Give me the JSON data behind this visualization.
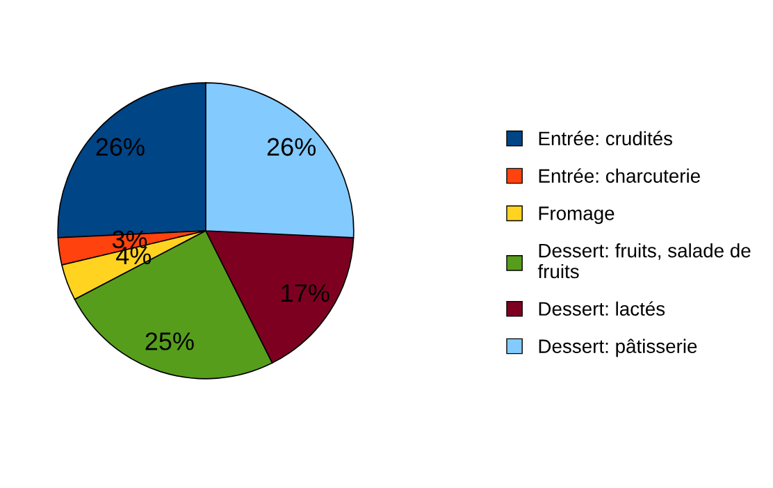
{
  "chart_data": {
    "type": "pie",
    "categories": [
      "Entrée: crudités",
      "Entrée: charcuterie",
      "Fromage",
      "Dessert: fruits, salade de fruits",
      "Dessert: lactés",
      "Dessert: pâtisserie"
    ],
    "values": [
      26,
      3,
      4,
      25,
      17,
      26
    ],
    "colors": [
      "#004586",
      "#ff420e",
      "#ffd320",
      "#579d1c",
      "#7e0021",
      "#83caff"
    ],
    "value_labels": [
      "26%",
      "3%",
      "4%",
      "25%",
      "17%",
      "26%"
    ],
    "legend": "right"
  }
}
